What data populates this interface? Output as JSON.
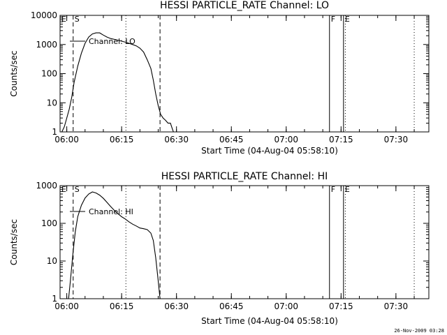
{
  "footer": {
    "date": "26-Nov-2009 03:28"
  },
  "chart_data": [
    {
      "type": "line",
      "title": "HESSI PARTICLE_RATE Channel: LO",
      "xlabel": "Start Time (04-Aug-04 05:58:10)",
      "ylabel": "Counts/sec",
      "yscale": "log",
      "ylim": [
        1,
        10000
      ],
      "xlim": [
        "05:58:10",
        "07:39:00"
      ],
      "xticks": [
        "06:00",
        "06:15",
        "06:30",
        "06:45",
        "07:00",
        "07:15",
        "07:30"
      ],
      "yticks": [
        "1",
        "10",
        "100",
        "1000",
        "10000"
      ],
      "legend": "Channel: LO",
      "flags": [
        {
          "label": "E",
          "time": "05:58:10",
          "style": "none"
        },
        {
          "label": "S",
          "time": "06:01:45",
          "style": "dashed"
        },
        {
          "label": "",
          "time": "06:16:10",
          "style": "dotted"
        },
        {
          "label": "",
          "time": "06:25:30",
          "style": "dashed"
        },
        {
          "label": "F",
          "time": "07:11:50",
          "style": "solid"
        },
        {
          "label": "E",
          "time": "07:15:40",
          "style": "solid"
        },
        {
          "label": "",
          "time": "07:16:10",
          "style": "dotted"
        },
        {
          "label": "",
          "time": "07:35:00",
          "style": "dotted"
        }
      ],
      "series": [
        {
          "name": "LO",
          "x": [
            "05:58:40",
            "05:59:20",
            "06:00:00",
            "06:00:40",
            "06:01:20",
            "06:02:00",
            "06:03:00",
            "06:04:00",
            "06:05:00",
            "06:06:00",
            "06:07:00",
            "06:08:00",
            "06:09:00",
            "06:10:00",
            "06:11:00",
            "06:12:00",
            "06:13:00",
            "06:14:00",
            "06:15:00",
            "06:16:00",
            "06:17:00",
            "06:18:00",
            "06:19:00",
            "06:20:00",
            "06:21:00",
            "06:22:00",
            "06:23:00",
            "06:23:40",
            "06:24:20",
            "06:25:00",
            "06:25:40",
            "06:26:20",
            "06:27:00",
            "06:27:40",
            "06:28:20",
            "06:28:50",
            "06:29:10"
          ],
          "values": [
            1,
            1.5,
            3,
            6,
            15,
            50,
            180,
            500,
            1100,
            1800,
            2300,
            2500,
            2500,
            2100,
            1800,
            1600,
            1500,
            1400,
            1300,
            1200,
            1100,
            1000,
            900,
            750,
            550,
            300,
            150,
            60,
            20,
            8,
            4,
            3,
            2.5,
            2,
            2,
            1.3,
            1
          ]
        }
      ]
    },
    {
      "type": "line",
      "title": "HESSI PARTICLE_RATE Channel: HI",
      "xlabel": "Start Time (04-Aug-04 05:58:10)",
      "ylabel": "Counts/sec",
      "yscale": "log",
      "ylim": [
        1,
        1000
      ],
      "xlim": [
        "05:58:10",
        "07:39:00"
      ],
      "xticks": [
        "06:00",
        "06:15",
        "06:30",
        "06:45",
        "07:00",
        "07:15",
        "07:30"
      ],
      "yticks": [
        "1",
        "10",
        "100",
        "1000"
      ],
      "legend": "Channel: HI",
      "flags": [
        {
          "label": "E",
          "time": "05:58:10",
          "style": "none"
        },
        {
          "label": "S",
          "time": "06:01:45",
          "style": "dashed"
        },
        {
          "label": "",
          "time": "06:16:10",
          "style": "dotted"
        },
        {
          "label": "",
          "time": "06:25:30",
          "style": "dashed"
        },
        {
          "label": "F",
          "time": "07:11:50",
          "style": "solid"
        },
        {
          "label": "E",
          "time": "07:15:40",
          "style": "solid"
        },
        {
          "label": "",
          "time": "07:16:10",
          "style": "dotted"
        },
        {
          "label": "",
          "time": "07:35:00",
          "style": "dotted"
        }
      ],
      "series": [
        {
          "name": "HI",
          "x": [
            "06:00:30",
            "06:01:00",
            "06:01:40",
            "06:02:20",
            "06:03:00",
            "06:04:00",
            "06:05:00",
            "06:06:00",
            "06:07:00",
            "06:08:00",
            "06:09:00",
            "06:10:00",
            "06:11:00",
            "06:12:00",
            "06:13:00",
            "06:14:00",
            "06:15:00",
            "06:16:00",
            "06:17:00",
            "06:18:00",
            "06:19:00",
            "06:20:00",
            "06:21:00",
            "06:22:00",
            "06:23:00",
            "06:23:40",
            "06:24:20",
            "06:25:00",
            "06:25:30"
          ],
          "values": [
            1,
            3,
            15,
            60,
            150,
            300,
            470,
            600,
            680,
            640,
            560,
            460,
            360,
            280,
            220,
            180,
            150,
            130,
            110,
            95,
            85,
            75,
            72,
            68,
            55,
            35,
            12,
            3,
            1
          ]
        }
      ]
    }
  ]
}
